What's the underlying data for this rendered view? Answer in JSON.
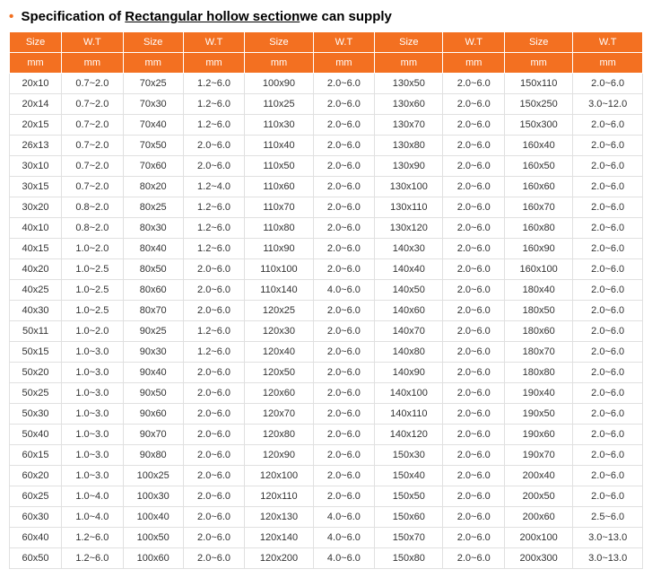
{
  "title": {
    "prefix": "Specification of ",
    "underlined": "Rectangular hollow section",
    "suffix": "we can supply"
  },
  "headers": {
    "row1": [
      "Size",
      "W.T",
      "Size",
      "W.T",
      "Size",
      "W.T",
      "Size",
      "W.T",
      "Size",
      "W.T"
    ],
    "row2": [
      "mm",
      "mm",
      "mm",
      "mm",
      "mm",
      "mm",
      "mm",
      "mm",
      "mm",
      "mm"
    ]
  },
  "rows": [
    [
      "20x10",
      "0.7~2.0",
      "70x25",
      "1.2~6.0",
      "100x90",
      "2.0~6.0",
      "130x50",
      "2.0~6.0",
      "150x110",
      "2.0~6.0"
    ],
    [
      "20x14",
      "0.7~2.0",
      "70x30",
      "1.2~6.0",
      "110x25",
      "2.0~6.0",
      "130x60",
      "2.0~6.0",
      "150x250",
      "3.0~12.0"
    ],
    [
      "20x15",
      "0.7~2.0",
      "70x40",
      "1.2~6.0",
      "110x30",
      "2.0~6.0",
      "130x70",
      "2.0~6.0",
      "150x300",
      "2.0~6.0"
    ],
    [
      "26x13",
      "0.7~2.0",
      "70x50",
      "2.0~6.0",
      "110x40",
      "2.0~6.0",
      "130x80",
      "2.0~6.0",
      "160x40",
      "2.0~6.0"
    ],
    [
      "30x10",
      "0.7~2.0",
      "70x60",
      "2.0~6.0",
      "110x50",
      "2.0~6.0",
      "130x90",
      "2.0~6.0",
      "160x50",
      "2.0~6.0"
    ],
    [
      "30x15",
      "0.7~2.0",
      "80x20",
      "1.2~4.0",
      "110x60",
      "2.0~6.0",
      "130x100",
      "2.0~6.0",
      "160x60",
      "2.0~6.0"
    ],
    [
      "30x20",
      "0.8~2.0",
      "80x25",
      "1.2~6.0",
      "110x70",
      "2.0~6.0",
      "130x110",
      "2.0~6.0",
      "160x70",
      "2.0~6.0"
    ],
    [
      "40x10",
      "0.8~2.0",
      "80x30",
      "1.2~6.0",
      "110x80",
      "2.0~6.0",
      "130x120",
      "2.0~6.0",
      "160x80",
      "2.0~6.0"
    ],
    [
      "40x15",
      "1.0~2.0",
      "80x40",
      "1.2~6.0",
      "110x90",
      "2.0~6.0",
      "140x30",
      "2.0~6.0",
      "160x90",
      "2.0~6.0"
    ],
    [
      "40x20",
      "1.0~2.5",
      "80x50",
      "2.0~6.0",
      "110x100",
      "2.0~6.0",
      "140x40",
      "2.0~6.0",
      "160x100",
      "2.0~6.0"
    ],
    [
      "40x25",
      "1.0~2.5",
      "80x60",
      "2.0~6.0",
      "110x140",
      "4.0~6.0",
      "140x50",
      "2.0~6.0",
      "180x40",
      "2.0~6.0"
    ],
    [
      "40x30",
      "1.0~2.5",
      "80x70",
      "2.0~6.0",
      "120x25",
      "2.0~6.0",
      "140x60",
      "2.0~6.0",
      "180x50",
      "2.0~6.0"
    ],
    [
      "50x11",
      "1.0~2.0",
      "90x25",
      "1.2~6.0",
      "120x30",
      "2.0~6.0",
      "140x70",
      "2.0~6.0",
      "180x60",
      "2.0~6.0"
    ],
    [
      "50x15",
      "1.0~3.0",
      "90x30",
      "1.2~6.0",
      "120x40",
      "2.0~6.0",
      "140x80",
      "2.0~6.0",
      "180x70",
      "2.0~6.0"
    ],
    [
      "50x20",
      "1.0~3.0",
      "90x40",
      "2.0~6.0",
      "120x50",
      "2.0~6.0",
      "140x90",
      "2.0~6.0",
      "180x80",
      "2.0~6.0"
    ],
    [
      "50x25",
      "1.0~3.0",
      "90x50",
      "2.0~6.0",
      "120x60",
      "2.0~6.0",
      "140x100",
      "2.0~6.0",
      "190x40",
      "2.0~6.0"
    ],
    [
      "50x30",
      "1.0~3.0",
      "90x60",
      "2.0~6.0",
      "120x70",
      "2.0~6.0",
      "140x110",
      "2.0~6.0",
      "190x50",
      "2.0~6.0"
    ],
    [
      "50x40",
      "1.0~3.0",
      "90x70",
      "2.0~6.0",
      "120x80",
      "2.0~6.0",
      "140x120",
      "2.0~6.0",
      "190x60",
      "2.0~6.0"
    ],
    [
      "60x15",
      "1.0~3.0",
      "90x80",
      "2.0~6.0",
      "120x90",
      "2.0~6.0",
      "150x30",
      "2.0~6.0",
      "190x70",
      "2.0~6.0"
    ],
    [
      "60x20",
      "1.0~3.0",
      "100x25",
      "2.0~6.0",
      "120x100",
      "2.0~6.0",
      "150x40",
      "2.0~6.0",
      "200x40",
      "2.0~6.0"
    ],
    [
      "60x25",
      "1.0~4.0",
      "100x30",
      "2.0~6.0",
      "120x110",
      "2.0~6.0",
      "150x50",
      "2.0~6.0",
      "200x50",
      "2.0~6.0"
    ],
    [
      "60x30",
      "1.0~4.0",
      "100x40",
      "2.0~6.0",
      "120x130",
      "4.0~6.0",
      "150x60",
      "2.0~6.0",
      "200x60",
      "2.5~6.0"
    ],
    [
      "60x40",
      "1.2~6.0",
      "100x50",
      "2.0~6.0",
      "120x140",
      "4.0~6.0",
      "150x70",
      "2.0~6.0",
      "200x100",
      "3.0~13.0"
    ],
    [
      "60x50",
      "1.2~6.0",
      "100x60",
      "2.0~6.0",
      "120x200",
      "4.0~6.0",
      "150x80",
      "2.0~6.0",
      "200x300",
      "3.0~13.0"
    ]
  ],
  "colors": {
    "accent": "#f37021",
    "border": "#e0e0e0",
    "text": "#333333",
    "header_text": "#ffffff",
    "background": "#ffffff"
  }
}
